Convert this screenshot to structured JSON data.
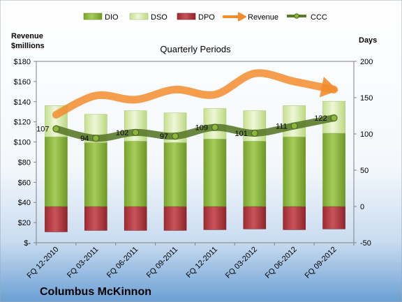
{
  "company": "Columbus McKinnon",
  "colors": {
    "dio": "#8db63c",
    "dso": "#d4e8a8",
    "dpo": "#b0343a",
    "revenue": "#f28c2e",
    "ccc": "#5a7a2a"
  },
  "chart_data": {
    "type": "bar",
    "title": "Quarterly Periods",
    "left_axis_label_line1": "Revenue",
    "left_axis_label_line2": "$millions",
    "right_axis_label": "Days",
    "categories": [
      "FQ 12-2010",
      "FQ 03-2011",
      "FQ 06-2011",
      "FQ 09-2011",
      "FQ 12-2011",
      "FQ 03-2012",
      "FQ 06-2012",
      "FQ 09-2012"
    ],
    "left_axis": {
      "min": 0,
      "max": 180,
      "step": 20,
      "tick_labels": [
        "$-",
        "$20",
        "$40",
        "$60",
        "$80",
        "$100",
        "$120",
        "$140",
        "$160",
        "$180"
      ]
    },
    "right_axis": {
      "min": -50,
      "max": 200,
      "step": 50,
      "tick_labels": [
        "-50",
        "0",
        "50",
        "100",
        "150",
        "200"
      ]
    },
    "legend_position": "top",
    "series": [
      {
        "name": "DIO",
        "axis": "right",
        "kind": "stacked-bar",
        "values": [
          96,
          88,
          90,
          88,
          93,
          90,
          96,
          101
        ]
      },
      {
        "name": "DSO",
        "axis": "right",
        "kind": "stacked-bar",
        "values": [
          43,
          39,
          42,
          41,
          42,
          42,
          43,
          44
        ]
      },
      {
        "name": "DPO",
        "axis": "right",
        "kind": "negative-bar",
        "values": [
          -35,
          -33,
          -33,
          -33,
          -32,
          -31,
          -32,
          -31
        ]
      },
      {
        "name": "Revenue",
        "axis": "left",
        "kind": "line",
        "values": [
          127,
          146,
          142,
          152,
          147,
          168,
          160,
          152
        ]
      },
      {
        "name": "CCC",
        "axis": "right",
        "kind": "line",
        "values": [
          107,
          94,
          102,
          97,
          109,
          101,
          111,
          122
        ],
        "labels": [
          "107",
          "94",
          "102",
          "97",
          "109",
          "101",
          "111",
          "122"
        ]
      }
    ]
  }
}
